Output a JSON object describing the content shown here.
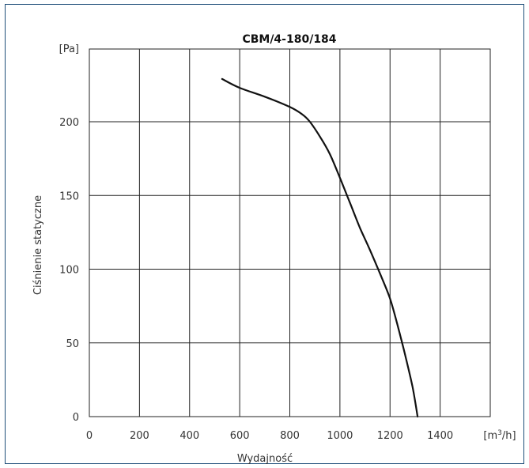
{
  "chart_data": {
    "type": "line",
    "title": "CBM/4-180/184",
    "xlabel": "Wydajność",
    "ylabel": "Ciśnienie statyczne",
    "xunit": {
      "prefix": "[m",
      "sup": "3",
      "suffix": "/h]"
    },
    "yunit": "[Pa]",
    "xlim": [
      0,
      1600
    ],
    "ylim": [
      0,
      250
    ],
    "x_ticks": [
      0,
      200,
      400,
      600,
      800,
      1000,
      1200,
      1400
    ],
    "y_ticks": [
      0,
      50,
      100,
      150,
      200
    ],
    "grid": true,
    "series": [
      {
        "x": [
          530,
          600,
          700,
          800,
          850,
          880,
          920,
          960,
          1000,
          1040,
          1080,
          1120,
          1160,
          1200,
          1230,
          1260,
          1290,
          1310
        ],
        "y": [
          229,
          223,
          217,
          210,
          205,
          200,
          190,
          178,
          162,
          145,
          128,
          113,
          97,
          80,
          62,
          42,
          20,
          0
        ]
      }
    ]
  }
}
